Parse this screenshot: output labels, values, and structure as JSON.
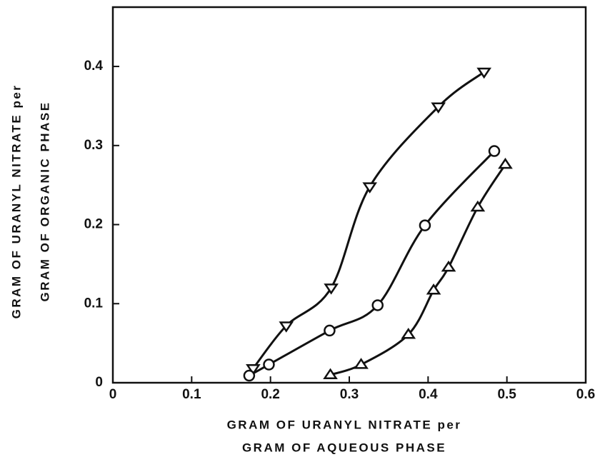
{
  "chart_data": {
    "type": "line",
    "xlabel": [
      "GRAM OF URANYL NITRATE per",
      "GRAM OF AQUEOUS PHASE"
    ],
    "ylabel": [
      "GRAM OF URANYL NITRATE per",
      "GRAM OF ORGANIC PHASE"
    ],
    "xlim": [
      0,
      0.6
    ],
    "ylim": [
      0,
      0.475
    ],
    "xticks": [
      0,
      0.1,
      0.2,
      0.3,
      0.4,
      0.5,
      0.6
    ],
    "yticks": [
      0,
      0.1,
      0.2,
      0.3,
      0.4
    ],
    "grid": false,
    "series": [
      {
        "marker": "triangle-down",
        "color": "#111111",
        "x": [
          0.178,
          0.22,
          0.277,
          0.326,
          0.413,
          0.471
        ],
        "values": [
          0.018,
          0.072,
          0.12,
          0.248,
          0.349,
          0.393
        ]
      },
      {
        "marker": "circle",
        "color": "#111111",
        "x": [
          0.173,
          0.198,
          0.275,
          0.336,
          0.396,
          0.484
        ],
        "values": [
          0.009,
          0.023,
          0.066,
          0.098,
          0.199,
          0.293
        ]
      },
      {
        "marker": "triangle-up",
        "color": "#111111",
        "x": [
          0.276,
          0.315,
          0.375,
          0.407,
          0.426,
          0.463,
          0.498
        ],
        "values": [
          0.01,
          0.023,
          0.061,
          0.117,
          0.146,
          0.222,
          0.276
        ]
      }
    ]
  }
}
